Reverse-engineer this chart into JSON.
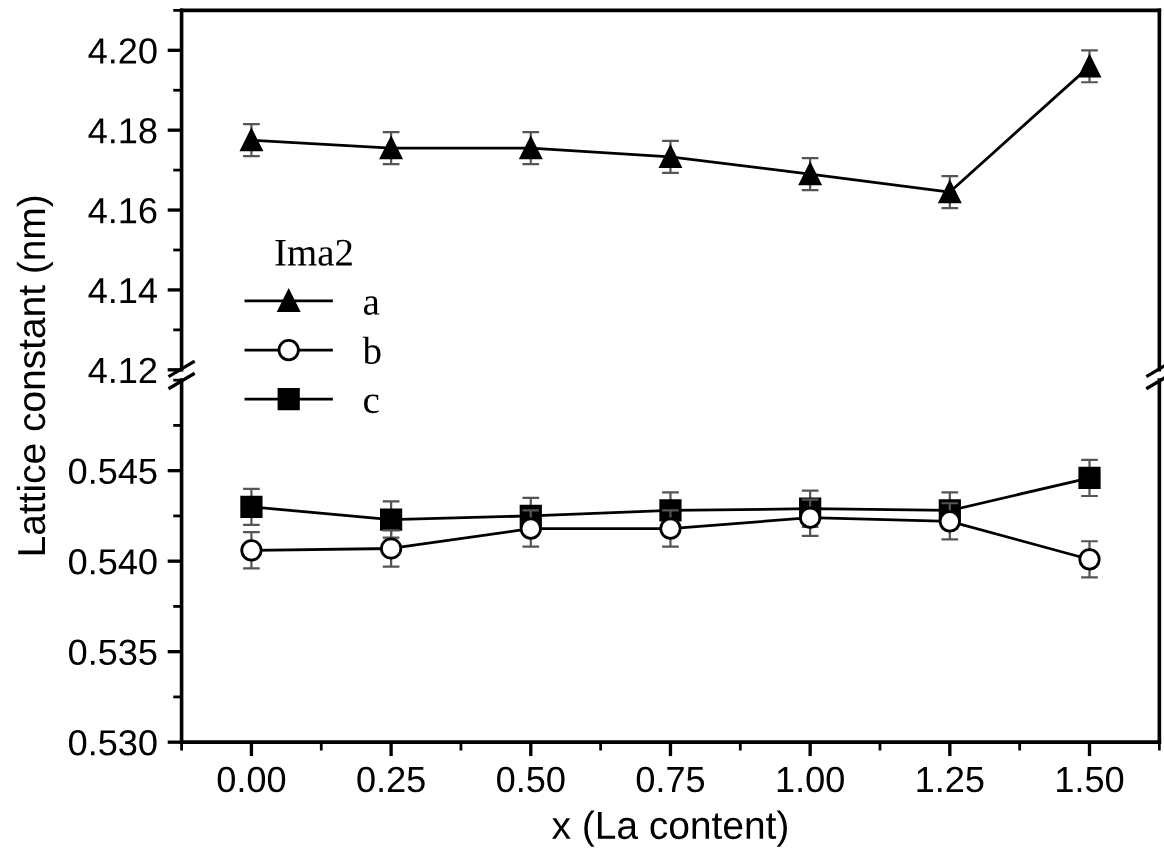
{
  "chart_data": [
    {
      "type": "line",
      "ylabel": "Lattice constant (nm)",
      "legend_title": "Ima2",
      "legend": "bottom left",
      "tick_labels": "y",
      "x": [
        0,
        0.25,
        0.5,
        0.75,
        1.0,
        1.25,
        1.5
      ],
      "xlim": [
        -0.125,
        1.625
      ],
      "ylim": [
        4.12,
        4.21
      ],
      "yticks": [
        {
          "value": 4.12,
          "label": "4.12"
        },
        {
          "value": 4.14,
          "label": "4.14"
        },
        {
          "value": 4.16,
          "label": "4.16"
        },
        {
          "value": 4.18,
          "label": "4.18"
        },
        {
          "value": 4.2,
          "label": "4.20"
        }
      ],
      "grid": false,
      "series": [
        {
          "name": "a",
          "color": "#000000",
          "marker": "triangle",
          "values": [
            4.1775,
            4.1755,
            4.1755,
            4.1733,
            4.169,
            4.1645,
            4.196
          ],
          "errors": [
            0.004,
            0.004,
            0.004,
            0.004,
            0.004,
            0.004,
            0.004
          ]
        }
      ]
    },
    {
      "type": "line",
      "xlabel": "x (La content)",
      "legend": "top left",
      "x": [
        0,
        0.25,
        0.5,
        0.75,
        1.0,
        1.25,
        1.5
      ],
      "xlim": [
        -0.125,
        1.625
      ],
      "xticks": [
        {
          "value": 0,
          "label": "0.00"
        },
        {
          "value": 0.25,
          "label": "0.25"
        },
        {
          "value": 0.5,
          "label": "0.50"
        },
        {
          "value": 0.75,
          "label": "0.75"
        },
        {
          "value": 1.0,
          "label": "1.00"
        },
        {
          "value": 1.25,
          "label": "1.25"
        },
        {
          "value": 1.5,
          "label": "1.50"
        }
      ],
      "ylim": [
        0.53,
        0.55
      ],
      "yticks": [
        {
          "value": 0.53,
          "label": "0.530"
        },
        {
          "value": 0.535,
          "label": "0.535"
        },
        {
          "value": 0.54,
          "label": "0.540"
        },
        {
          "value": 0.545,
          "label": "0.545"
        }
      ],
      "grid": false,
      "series": [
        {
          "name": "b",
          "color": "#000000",
          "marker": "circle",
          "values": [
            0.5406,
            0.5407,
            0.5418,
            0.5418,
            0.5424,
            0.5422,
            0.5401
          ],
          "errors": [
            0.001,
            0.001,
            0.001,
            0.001,
            0.001,
            0.001,
            0.001
          ]
        },
        {
          "name": "c",
          "color": "#000000",
          "marker": "square",
          "values": [
            0.543,
            0.5423,
            0.5425,
            0.5428,
            0.5429,
            0.5428,
            0.5446
          ],
          "errors": [
            0.001,
            0.001,
            0.001,
            0.001,
            0.001,
            0.001,
            0.001
          ]
        }
      ]
    }
  ]
}
